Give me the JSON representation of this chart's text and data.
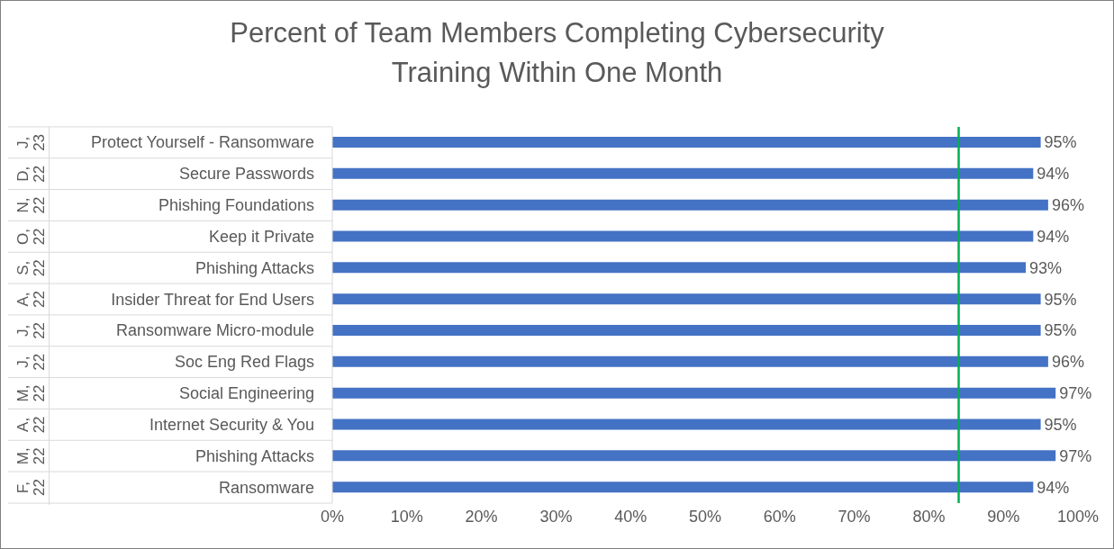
{
  "chart_data": {
    "type": "bar",
    "orientation": "horizontal",
    "title": "Percent of Team Members Completing Cybersecurity Training Within One Month",
    "categories": [
      "Protect Yourself - Ransomware",
      "Secure Passwords",
      "Phishing Foundations",
      "Keep it Private",
      "Phishing Attacks",
      "Insider Threat for End Users",
      "Ransomware Micro-module",
      "Soc Eng Red Flags",
      "Social Engineering",
      "Internet Security & You",
      "Phishing Attacks",
      "Ransomware"
    ],
    "annotations": [
      "J, 23",
      "D, 22",
      "N, 22",
      "O, 22",
      "S, 22",
      "A, 22",
      "J, 22",
      "J, 22",
      "M, 22",
      "A, 22",
      "M, 22",
      "F, 22"
    ],
    "values": [
      95,
      94,
      96,
      94,
      93,
      95,
      95,
      96,
      97,
      95,
      97,
      94
    ],
    "value_labels": [
      "95%",
      "94%",
      "96%",
      "94%",
      "93%",
      "95%",
      "95%",
      "96%",
      "97%",
      "95%",
      "97%",
      "94%"
    ],
    "color": "#4472c4",
    "xlim": [
      0,
      100
    ],
    "xticks": [
      {
        "value": 0,
        "label": "0%"
      },
      {
        "value": 10,
        "label": "10%"
      },
      {
        "value": 20,
        "label": "20%"
      },
      {
        "value": 30,
        "label": "30%"
      },
      {
        "value": 40,
        "label": "40%"
      },
      {
        "value": 50,
        "label": "50%"
      },
      {
        "value": 60,
        "label": "60%"
      },
      {
        "value": 70,
        "label": "70%"
      },
      {
        "value": 80,
        "label": "80%"
      },
      {
        "value": 90,
        "label": "90%"
      },
      {
        "value": 100,
        "label": "100%"
      }
    ],
    "ref_lines": [
      {
        "axis": "x",
        "value": 84,
        "color": "#00b050"
      }
    ]
  }
}
